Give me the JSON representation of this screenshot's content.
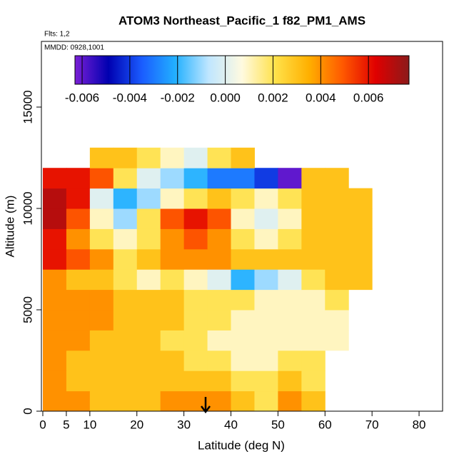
{
  "chart_data": {
    "type": "heatmap",
    "title": "ATOM3 Northeast_Pacific_1 f82_PM1_AMS",
    "annotations": [
      "Flts: 1,2",
      "MMDD: 0928,1001"
    ],
    "x_label": "Latitude (deg N)",
    "y_label": "Altitude (m)",
    "xlim": [
      -0.3,
      85
    ],
    "ylim": [
      0,
      18240
    ],
    "xticks": [
      0,
      5,
      10,
      20,
      30,
      40,
      50,
      60,
      70,
      80
    ],
    "yticks": [
      0,
      5000,
      10000,
      15000
    ],
    "x_bins": [
      0,
      5,
      10,
      15,
      20,
      25,
      30,
      35,
      40,
      45,
      50,
      55,
      60,
      65,
      70
    ],
    "y_bins": [
      0,
      1000,
      2000,
      3000,
      4000,
      5000,
      6000,
      7000,
      8000,
      9000,
      10000,
      11000,
      12000,
      13000
    ],
    "values": [
      [
        0.004,
        0.004,
        0.003,
        0.003,
        0.003,
        0.004,
        0.004,
        0.004,
        0.003,
        0.002,
        0.004,
        0.003,
        null,
        null
      ],
      [
        0.004,
        0.003,
        0.003,
        0.003,
        0.003,
        0.003,
        0.003,
        0.003,
        0.002,
        0.002,
        0.003,
        0.002,
        null,
        null
      ],
      [
        0.004,
        0.003,
        0.003,
        0.003,
        0.003,
        0.003,
        0.002,
        0.002,
        0.001,
        0.001,
        0.002,
        0.002,
        null,
        null
      ],
      [
        0.004,
        0.004,
        0.003,
        0.003,
        0.003,
        0.002,
        0.002,
        0.001,
        0.001,
        0.001,
        0.001,
        0.001,
        0.001,
        null
      ],
      [
        0.004,
        0.004,
        0.004,
        0.003,
        0.003,
        0.003,
        0.002,
        0.002,
        0.001,
        0.001,
        0.001,
        0.001,
        0.001,
        null
      ],
      [
        0.004,
        0.004,
        0.004,
        0.003,
        0.003,
        0.003,
        0.002,
        0.002,
        0.002,
        0.001,
        0.001,
        0.001,
        0.002,
        null
      ],
      [
        0.004,
        0.003,
        0.003,
        0.002,
        0.001,
        0.002,
        0.001,
        0.0,
        -0.002,
        -0.001,
        0.0,
        0.002,
        0.003,
        0.003
      ],
      [
        0.006,
        0.005,
        0.004,
        0.002,
        0.003,
        0.004,
        0.004,
        0.004,
        0.003,
        0.003,
        0.003,
        0.003,
        0.003,
        0.003
      ],
      [
        0.006,
        0.004,
        0.002,
        0.001,
        0.002,
        0.004,
        0.005,
        0.004,
        0.002,
        0.001,
        0.002,
        0.003,
        0.003,
        0.003
      ],
      [
        0.007,
        0.005,
        0.001,
        -0.001,
        0.002,
        0.005,
        0.006,
        0.005,
        0.001,
        0.0,
        0.001,
        0.003,
        0.003,
        0.003
      ],
      [
        0.007,
        0.006,
        0.0,
        -0.002,
        -0.001,
        0.001,
        0.002,
        0.003,
        0.002,
        0.001,
        0.002,
        0.003,
        0.003,
        0.003
      ],
      [
        0.006,
        0.006,
        0.005,
        0.002,
        0.0,
        -0.001,
        -0.002,
        -0.003,
        -0.003,
        -0.004,
        -0.006,
        0.003,
        0.003,
        null
      ],
      [
        null,
        null,
        0.003,
        0.003,
        0.002,
        0.001,
        0.0,
        0.002,
        0.003,
        null,
        null,
        null,
        null,
        null
      ]
    ],
    "zlim": [
      -0.0063,
      0.0077
    ],
    "zticks": [
      -0.006,
      -0.004,
      -0.002,
      {
        "value": 0,
        "label": "0.000"
      },
      0.002,
      0.004,
      0.006
    ],
    "colors": [
      "#7a1fd6",
      "#0000b0",
      "#1a5cff",
      "#22b0ff",
      "#bfe6ff",
      "#fffae0",
      "#ffe14a",
      "#ffb000",
      "#ff5a00",
      "#e00000",
      "#8b1a1a"
    ]
  }
}
